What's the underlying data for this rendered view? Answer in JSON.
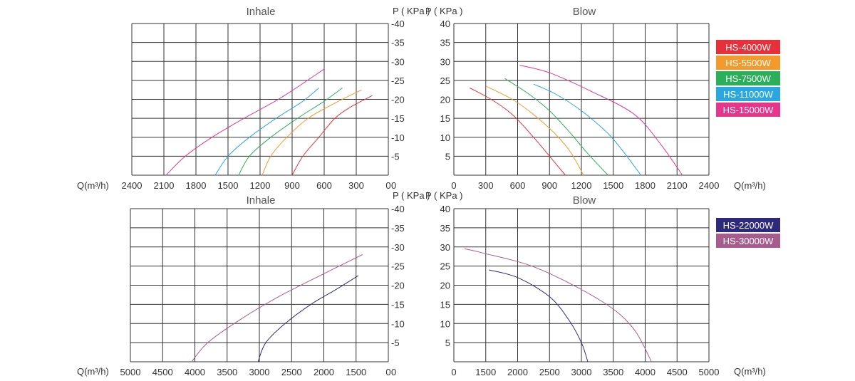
{
  "chart_data": [
    {
      "id": "top-inhale",
      "type": "line",
      "title": "Inhale",
      "xlabel": "Q(m³/h)",
      "ylabel": "P ( KPa )",
      "x_reversed": true,
      "xlim": [
        0,
        2400
      ],
      "ylim": [
        0,
        -40
      ],
      "x_ticks": [
        "2400",
        "2100",
        "1800",
        "1500",
        "1200",
        "900",
        "600",
        "300",
        "0"
      ],
      "y_ticks": [
        "-5",
        "-10",
        "-15",
        "-20",
        "-25",
        "-30",
        "-35",
        "-40"
      ],
      "grid": true,
      "series": [
        {
          "name": "HS-4000W",
          "color": "#e8303a",
          "x": [
            900,
            800,
            650,
            500,
            350,
            150
          ],
          "y": [
            0,
            -5,
            -10,
            -15,
            -18,
            -21
          ]
        },
        {
          "name": "HS-5500W",
          "color": "#f39a2c",
          "x": [
            1180,
            1100,
            950,
            750,
            500,
            250
          ],
          "y": [
            0,
            -5,
            -10,
            -15,
            -19,
            -22.5
          ]
        },
        {
          "name": "HS-7500W",
          "color": "#2bb059",
          "x": [
            1400,
            1300,
            1100,
            850,
            600,
            430
          ],
          "y": [
            0,
            -5,
            -10,
            -15,
            -19.5,
            -23
          ]
        },
        {
          "name": "HS-11000W",
          "color": "#2aa7e0",
          "x": [
            1620,
            1500,
            1300,
            1050,
            800,
            650
          ],
          "y": [
            0,
            -5,
            -10,
            -15,
            -19.5,
            -23
          ]
        },
        {
          "name": "HS-15000W",
          "color": "#e6358a",
          "x": [
            2080,
            1900,
            1650,
            1350,
            1000,
            600
          ],
          "y": [
            0,
            -5,
            -10,
            -15,
            -20.5,
            -28
          ]
        }
      ]
    },
    {
      "id": "top-blow",
      "type": "line",
      "title": "Blow",
      "xlabel": "Q(m³/h)",
      "ylabel": "P ( KPa )",
      "xlim": [
        0,
        2400
      ],
      "ylim": [
        0,
        40
      ],
      "x_ticks": [
        "0",
        "300",
        "600",
        "900",
        "1200",
        "1500",
        "1800",
        "2100",
        "2400"
      ],
      "y_ticks": [
        "5",
        "10",
        "15",
        "20",
        "25",
        "30",
        "35",
        "40"
      ],
      "grid": true,
      "series": [
        {
          "name": "HS-4000W",
          "color": "#e8303a",
          "x": [
            150,
            350,
            550,
            750,
            900,
            1050
          ],
          "y": [
            23,
            20,
            16,
            10,
            5,
            0
          ]
        },
        {
          "name": "HS-5500W",
          "color": "#f39a2c",
          "x": [
            300,
            550,
            750,
            950,
            1100,
            1220
          ],
          "y": [
            23.5,
            20,
            16,
            11,
            6,
            0
          ]
        },
        {
          "name": "HS-7500W",
          "color": "#2bb059",
          "x": [
            480,
            700,
            900,
            1100,
            1250,
            1450
          ],
          "y": [
            25.5,
            21.5,
            17,
            11,
            6,
            0
          ]
        },
        {
          "name": "HS-11000W",
          "color": "#2aa7e0",
          "x": [
            750,
            950,
            1200,
            1450,
            1600,
            1760
          ],
          "y": [
            24,
            21.5,
            17,
            11,
            6,
            0
          ]
        },
        {
          "name": "HS-15000W",
          "color": "#e6358a",
          "x": [
            620,
            900,
            1300,
            1700,
            1950,
            2150
          ],
          "y": [
            29,
            27,
            22,
            16,
            8,
            0
          ]
        }
      ]
    },
    {
      "id": "bottom-inhale",
      "type": "line",
      "title": "Inhale",
      "xlabel": "Q(m³/h)",
      "ylabel": "P ( KPa )",
      "x_reversed": true,
      "xlim": [
        0,
        5000
      ],
      "ylim": [
        0,
        -40
      ],
      "x_ticks": [
        "5000",
        "4500",
        "4000",
        "3500",
        "3000",
        "2500",
        "2000",
        "1500",
        "0"
      ],
      "y_ticks": [
        "-5",
        "-10",
        "-15",
        "-20",
        "-25",
        "-30",
        "-35",
        "-40"
      ],
      "grid": true,
      "series": [
        {
          "name": "HS-22000W",
          "color": "#2d2a7c",
          "x": [
            3020,
            2900,
            2600,
            2200,
            1800,
            1400
          ],
          "y": [
            0,
            -5,
            -10,
            -15,
            -19,
            -22.5
          ]
        },
        {
          "name": "HS-30000W",
          "color": "#a85c8e",
          "x": [
            4050,
            3800,
            3300,
            2700,
            2000,
            1200
          ],
          "y": [
            0,
            -5,
            -11,
            -17,
            -23,
            -28
          ]
        }
      ]
    },
    {
      "id": "bottom-blow",
      "type": "line",
      "title": "Blow",
      "xlabel": "Q(m³/h)",
      "ylabel": "P ( KPa )",
      "xlim": [
        0,
        5000
      ],
      "ylim": [
        0,
        40
      ],
      "x_ticks": [
        "0",
        "1500",
        "2000",
        "2500",
        "3000",
        "3500",
        "4000",
        "4500",
        "5000"
      ],
      "y_ticks": [
        "5",
        "10",
        "15",
        "20",
        "25",
        "30",
        "35",
        "40"
      ],
      "grid": true,
      "series": [
        {
          "name": "HS-22000W",
          "color": "#2d2a7c",
          "x": [
            1550,
            2000,
            2500,
            2800,
            3000,
            3100
          ],
          "y": [
            24,
            22,
            17,
            11,
            5,
            0
          ]
        },
        {
          "name": "HS-30000W",
          "color": "#a85c8e",
          "x": [
            500,
            1300,
            2300,
            3300,
            3800,
            4100
          ],
          "y": [
            29.5,
            28.5,
            24.5,
            16,
            9,
            0
          ]
        }
      ]
    }
  ],
  "legends": [
    {
      "id": "legend-top",
      "items": [
        {
          "label": "HS-4000W",
          "color": "#e8303a"
        },
        {
          "label": "HS-5500W",
          "color": "#f39a2c"
        },
        {
          "label": "HS-7500W",
          "color": "#2bb059"
        },
        {
          "label": "HS-11000W",
          "color": "#2aa7e0"
        },
        {
          "label": "HS-15000W",
          "color": "#e6358a"
        }
      ]
    },
    {
      "id": "legend-bottom",
      "items": [
        {
          "label": "HS-22000W",
          "color": "#2d2a7c"
        },
        {
          "label": "HS-30000W",
          "color": "#a85c8e"
        }
      ]
    }
  ]
}
